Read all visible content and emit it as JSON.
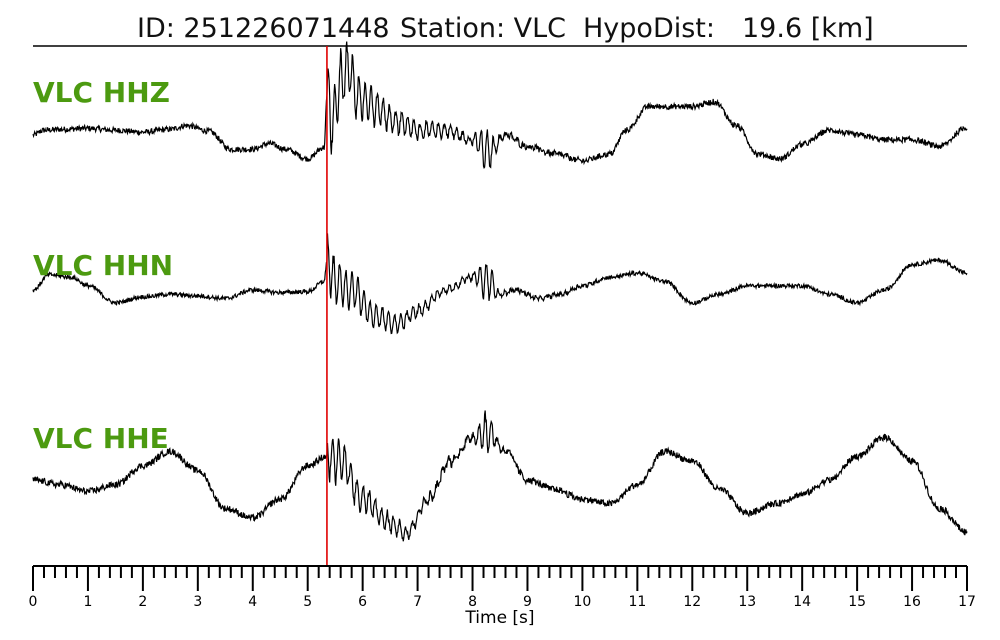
{
  "header": {
    "id_text": "ID: 251226071448",
    "station_text": "Station: VLC",
    "hypodist_label": "HypoDist:",
    "hypodist_value": "19.6 [km]"
  },
  "chart_data": {
    "type": "line",
    "title": "ID: 251226071448   Station: VLC   HypoDist:    19.6 [km]",
    "xlabel": "Time [s]",
    "ylabel": "",
    "xlim": [
      0,
      17
    ],
    "x_ticks": [
      0,
      1,
      2,
      3,
      4,
      5,
      6,
      7,
      8,
      9,
      10,
      11,
      12,
      13,
      14,
      15,
      16,
      17
    ],
    "x_tick_labels": [
      "0",
      "1",
      "2",
      "3",
      "4",
      "5",
      "6",
      "7",
      "8",
      "9",
      "10",
      "11",
      "12",
      "13",
      "14",
      "15",
      "16",
      "17"
    ],
    "minor_tick_step": 0.2,
    "grid": false,
    "label_color": "#4c9a10",
    "trace_color": "#000000",
    "pick_color": "#e00000",
    "pick_time": 5.35,
    "series": [
      {
        "name": "VLC HHZ",
        "amplitude_scale": 1.0,
        "x": [
          0,
          0.2,
          0.5,
          1.0,
          1.5,
          2.0,
          2.5,
          2.8,
          3.2,
          3.6,
          4.0,
          4.3,
          4.6,
          5.0,
          5.3,
          5.35,
          5.45,
          5.6,
          5.75,
          5.9,
          6.2,
          6.6,
          7.0,
          7.5,
          8.0,
          8.3,
          8.6,
          9.0,
          9.5,
          10.0,
          10.5,
          10.8,
          11.2,
          11.6,
          12.0,
          12.4,
          12.8,
          13.2,
          13.6,
          14.0,
          14.5,
          15.0,
          15.5,
          16.0,
          16.5,
          17.0
        ],
        "y": [
          0.0,
          0.05,
          0.06,
          0.07,
          0.05,
          0.03,
          0.06,
          0.1,
          0.04,
          -0.15,
          -0.15,
          -0.09,
          -0.15,
          -0.25,
          -0.13,
          0.4,
          0.15,
          0.55,
          0.7,
          0.4,
          0.3,
          0.15,
          0.05,
          0.05,
          -0.05,
          -0.18,
          0.0,
          -0.12,
          -0.2,
          -0.27,
          -0.2,
          0.05,
          0.3,
          0.3,
          0.3,
          0.35,
          0.1,
          -0.2,
          -0.25,
          -0.1,
          0.05,
          0.0,
          -0.05,
          -0.05,
          -0.12,
          0.08
        ],
        "noise": 0.03,
        "burst_amp": 0.45
      },
      {
        "name": "VLC HHN",
        "amplitude_scale": 1.0,
        "x": [
          0,
          0.3,
          0.7,
          1.0,
          1.5,
          2.0,
          2.5,
          3.0,
          3.5,
          4.0,
          4.5,
          5.0,
          5.3,
          5.35,
          5.5,
          5.8,
          6.2,
          6.6,
          7.0,
          7.5,
          8.0,
          8.3,
          8.5,
          8.8,
          9.2,
          9.6,
          10.0,
          10.5,
          11.0,
          11.5,
          12.0,
          12.5,
          13.0,
          13.5,
          14.0,
          14.5,
          15.0,
          15.5,
          16.0,
          16.5,
          17.0
        ],
        "y": [
          0.0,
          0.18,
          0.15,
          0.05,
          -0.15,
          -0.08,
          -0.05,
          -0.07,
          -0.1,
          0.0,
          -0.03,
          -0.02,
          0.1,
          0.35,
          0.1,
          0.0,
          -0.3,
          -0.4,
          -0.25,
          0.0,
          0.15,
          0.1,
          -0.05,
          0.0,
          -0.1,
          -0.05,
          0.05,
          0.15,
          0.2,
          0.1,
          -0.15,
          -0.05,
          0.05,
          0.05,
          0.05,
          -0.05,
          -0.15,
          0.0,
          0.3,
          0.35,
          0.2
        ],
        "noise": 0.025,
        "burst_amp": 0.35
      },
      {
        "name": "VLC HHE",
        "amplitude_scale": 1.0,
        "x": [
          0,
          0.5,
          1.0,
          1.5,
          2.0,
          2.5,
          3.0,
          3.5,
          4.0,
          4.5,
          5.0,
          5.35,
          5.6,
          6.0,
          6.5,
          6.8,
          7.2,
          7.6,
          8.0,
          8.3,
          8.6,
          9.0,
          9.5,
          10.0,
          10.5,
          11.0,
          11.5,
          12.0,
          12.5,
          13.0,
          13.5,
          14.0,
          14.5,
          15.0,
          15.5,
          16.0,
          16.5,
          17.0
        ],
        "y": [
          0.0,
          -0.05,
          -0.12,
          -0.05,
          0.15,
          0.3,
          0.1,
          -0.3,
          -0.4,
          -0.2,
          0.15,
          0.25,
          0.2,
          -0.2,
          -0.45,
          -0.55,
          -0.2,
          0.2,
          0.45,
          0.5,
          0.3,
          0.0,
          -0.1,
          -0.2,
          -0.25,
          -0.05,
          0.3,
          0.2,
          -0.1,
          -0.35,
          -0.25,
          -0.15,
          0.0,
          0.25,
          0.45,
          0.2,
          -0.3,
          -0.55
        ],
        "noise": 0.035,
        "burst_amp": 0.3
      }
    ]
  }
}
